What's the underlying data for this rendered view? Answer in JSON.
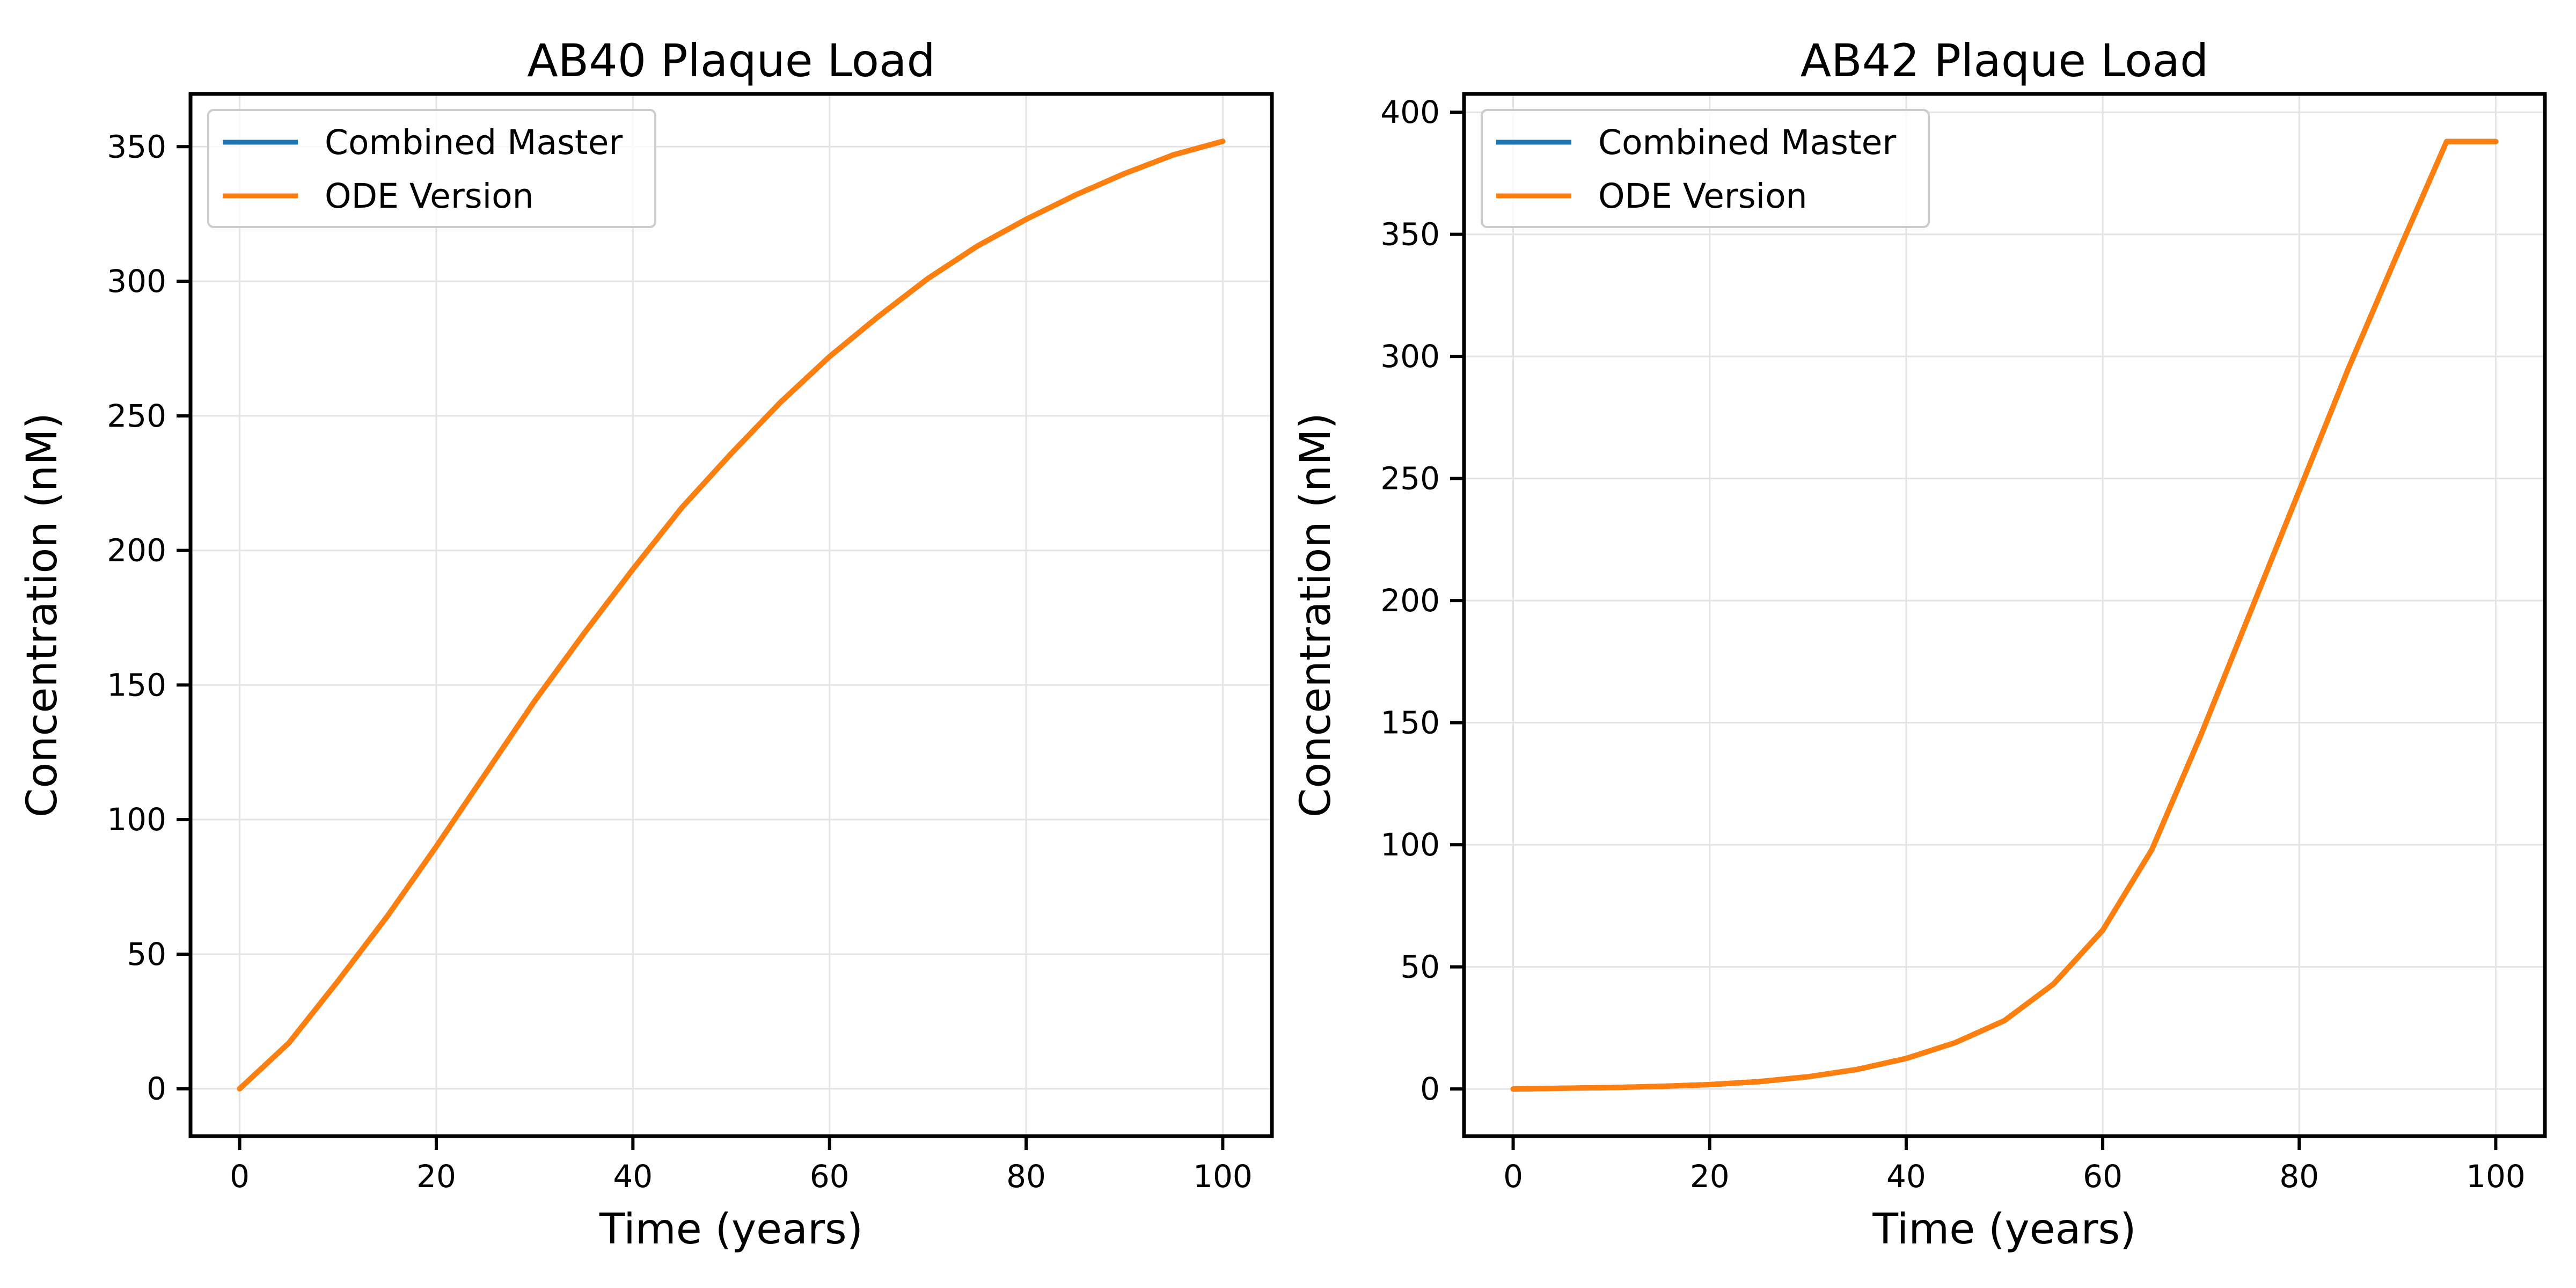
{
  "chart_data": [
    {
      "type": "line",
      "title": "AB40 Plaque Load",
      "xlabel": "Time (years)",
      "ylabel": "Concentration (nM)",
      "xlim": [
        -5,
        105
      ],
      "ylim": [
        -17.6,
        369.6
      ],
      "xticks": [
        0,
        20,
        40,
        60,
        80,
        100
      ],
      "yticks": [
        0,
        50,
        100,
        150,
        200,
        250,
        300,
        350
      ],
      "grid": true,
      "legend_position": "top-left",
      "x": [
        0,
        5,
        10,
        15,
        20,
        25,
        30,
        35,
        40,
        45,
        50,
        55,
        60,
        65,
        70,
        75,
        80,
        85,
        90,
        95,
        100
      ],
      "series": [
        {
          "name": "Combined Master",
          "color": "#1f77b4",
          "values": [
            0,
            17,
            40,
            64,
            90,
            117,
            144,
            169,
            193,
            216,
            236,
            255,
            272,
            287,
            301,
            313,
            323,
            332,
            340,
            347,
            352
          ]
        },
        {
          "name": "ODE Version",
          "color": "#ff7f0e",
          "values": [
            0,
            17,
            40,
            64,
            90,
            117,
            144,
            169,
            193,
            216,
            236,
            255,
            272,
            287,
            301,
            313,
            323,
            332,
            340,
            347,
            352
          ]
        }
      ]
    },
    {
      "type": "line",
      "title": "AB42 Plaque Load",
      "xlabel": "Time (years)",
      "ylabel": "Concentration (nM)",
      "xlim": [
        -5,
        105
      ],
      "ylim": [
        -19.3,
        407.5
      ],
      "xticks": [
        0,
        20,
        40,
        60,
        80,
        100
      ],
      "yticks": [
        0,
        50,
        100,
        150,
        200,
        250,
        300,
        350,
        400
      ],
      "grid": true,
      "legend_position": "top-left",
      "x": [
        0,
        5,
        10,
        15,
        20,
        25,
        30,
        35,
        40,
        45,
        50,
        55,
        60,
        65,
        70,
        75,
        80,
        85,
        90,
        95,
        100
      ],
      "series": [
        {
          "name": "Combined Master",
          "color": "#1f77b4",
          "values": [
            0,
            0.3,
            0.6,
            1.1,
            1.8,
            3,
            5,
            8,
            12.5,
            19,
            28,
            43,
            65,
            98,
            145,
            195,
            245,
            295,
            342,
            388,
            388
          ]
        },
        {
          "name": "ODE Version",
          "color": "#ff7f0e",
          "values": [
            0,
            0.3,
            0.6,
            1.1,
            1.8,
            3,
            5,
            8,
            12.5,
            19,
            28,
            43,
            65,
            98,
            145,
            195,
            245,
            295,
            342,
            388,
            388
          ]
        }
      ]
    }
  ]
}
